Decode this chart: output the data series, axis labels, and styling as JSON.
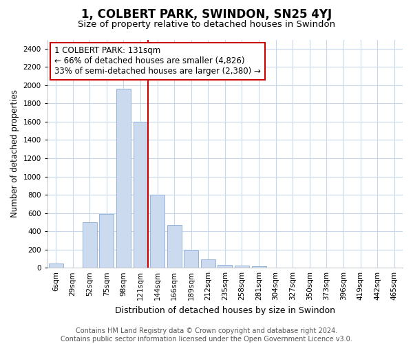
{
  "title": "1, COLBERT PARK, SWINDON, SN25 4YJ",
  "subtitle": "Size of property relative to detached houses in Swindon",
  "xlabel": "Distribution of detached houses by size in Swindon",
  "ylabel": "Number of detached properties",
  "footer_line1": "Contains HM Land Registry data © Crown copyright and database right 2024.",
  "footer_line2": "Contains public sector information licensed under the Open Government Licence v3.0.",
  "annotation_line1": "1 COLBERT PARK: 131sqm",
  "annotation_line2": "← 66% of detached houses are smaller (4,826)",
  "annotation_line3": "33% of semi-detached houses are larger (2,380) →",
  "bar_color": "#ccdaf0",
  "bar_edge_color": "#88aad8",
  "grid_color": "#c8d8ea",
  "vline_color": "#cc0000",
  "annotation_box_color": "#ffffff",
  "annotation_box_edge_color": "#cc0000",
  "categories": [
    "6sqm",
    "29sqm",
    "52sqm",
    "75sqm",
    "98sqm",
    "121sqm",
    "144sqm",
    "166sqm",
    "189sqm",
    "212sqm",
    "235sqm",
    "258sqm",
    "281sqm",
    "304sqm",
    "327sqm",
    "350sqm",
    "373sqm",
    "396sqm",
    "419sqm",
    "442sqm",
    "465sqm"
  ],
  "values": [
    50,
    0,
    500,
    590,
    1960,
    1600,
    800,
    470,
    190,
    90,
    30,
    25,
    18,
    0,
    0,
    5,
    0,
    0,
    0,
    0,
    0
  ],
  "vline_bar_index": 5,
  "ylim": [
    0,
    2500
  ],
  "yticks": [
    0,
    200,
    400,
    600,
    800,
    1000,
    1200,
    1400,
    1600,
    1800,
    2000,
    2200,
    2400
  ],
  "title_fontsize": 12,
  "subtitle_fontsize": 9.5,
  "xlabel_fontsize": 9,
  "ylabel_fontsize": 8.5,
  "tick_fontsize": 7.5,
  "footer_fontsize": 7,
  "annotation_fontsize": 8.5,
  "bg_color": "#ffffff",
  "plot_bg_color": "#ffffff"
}
